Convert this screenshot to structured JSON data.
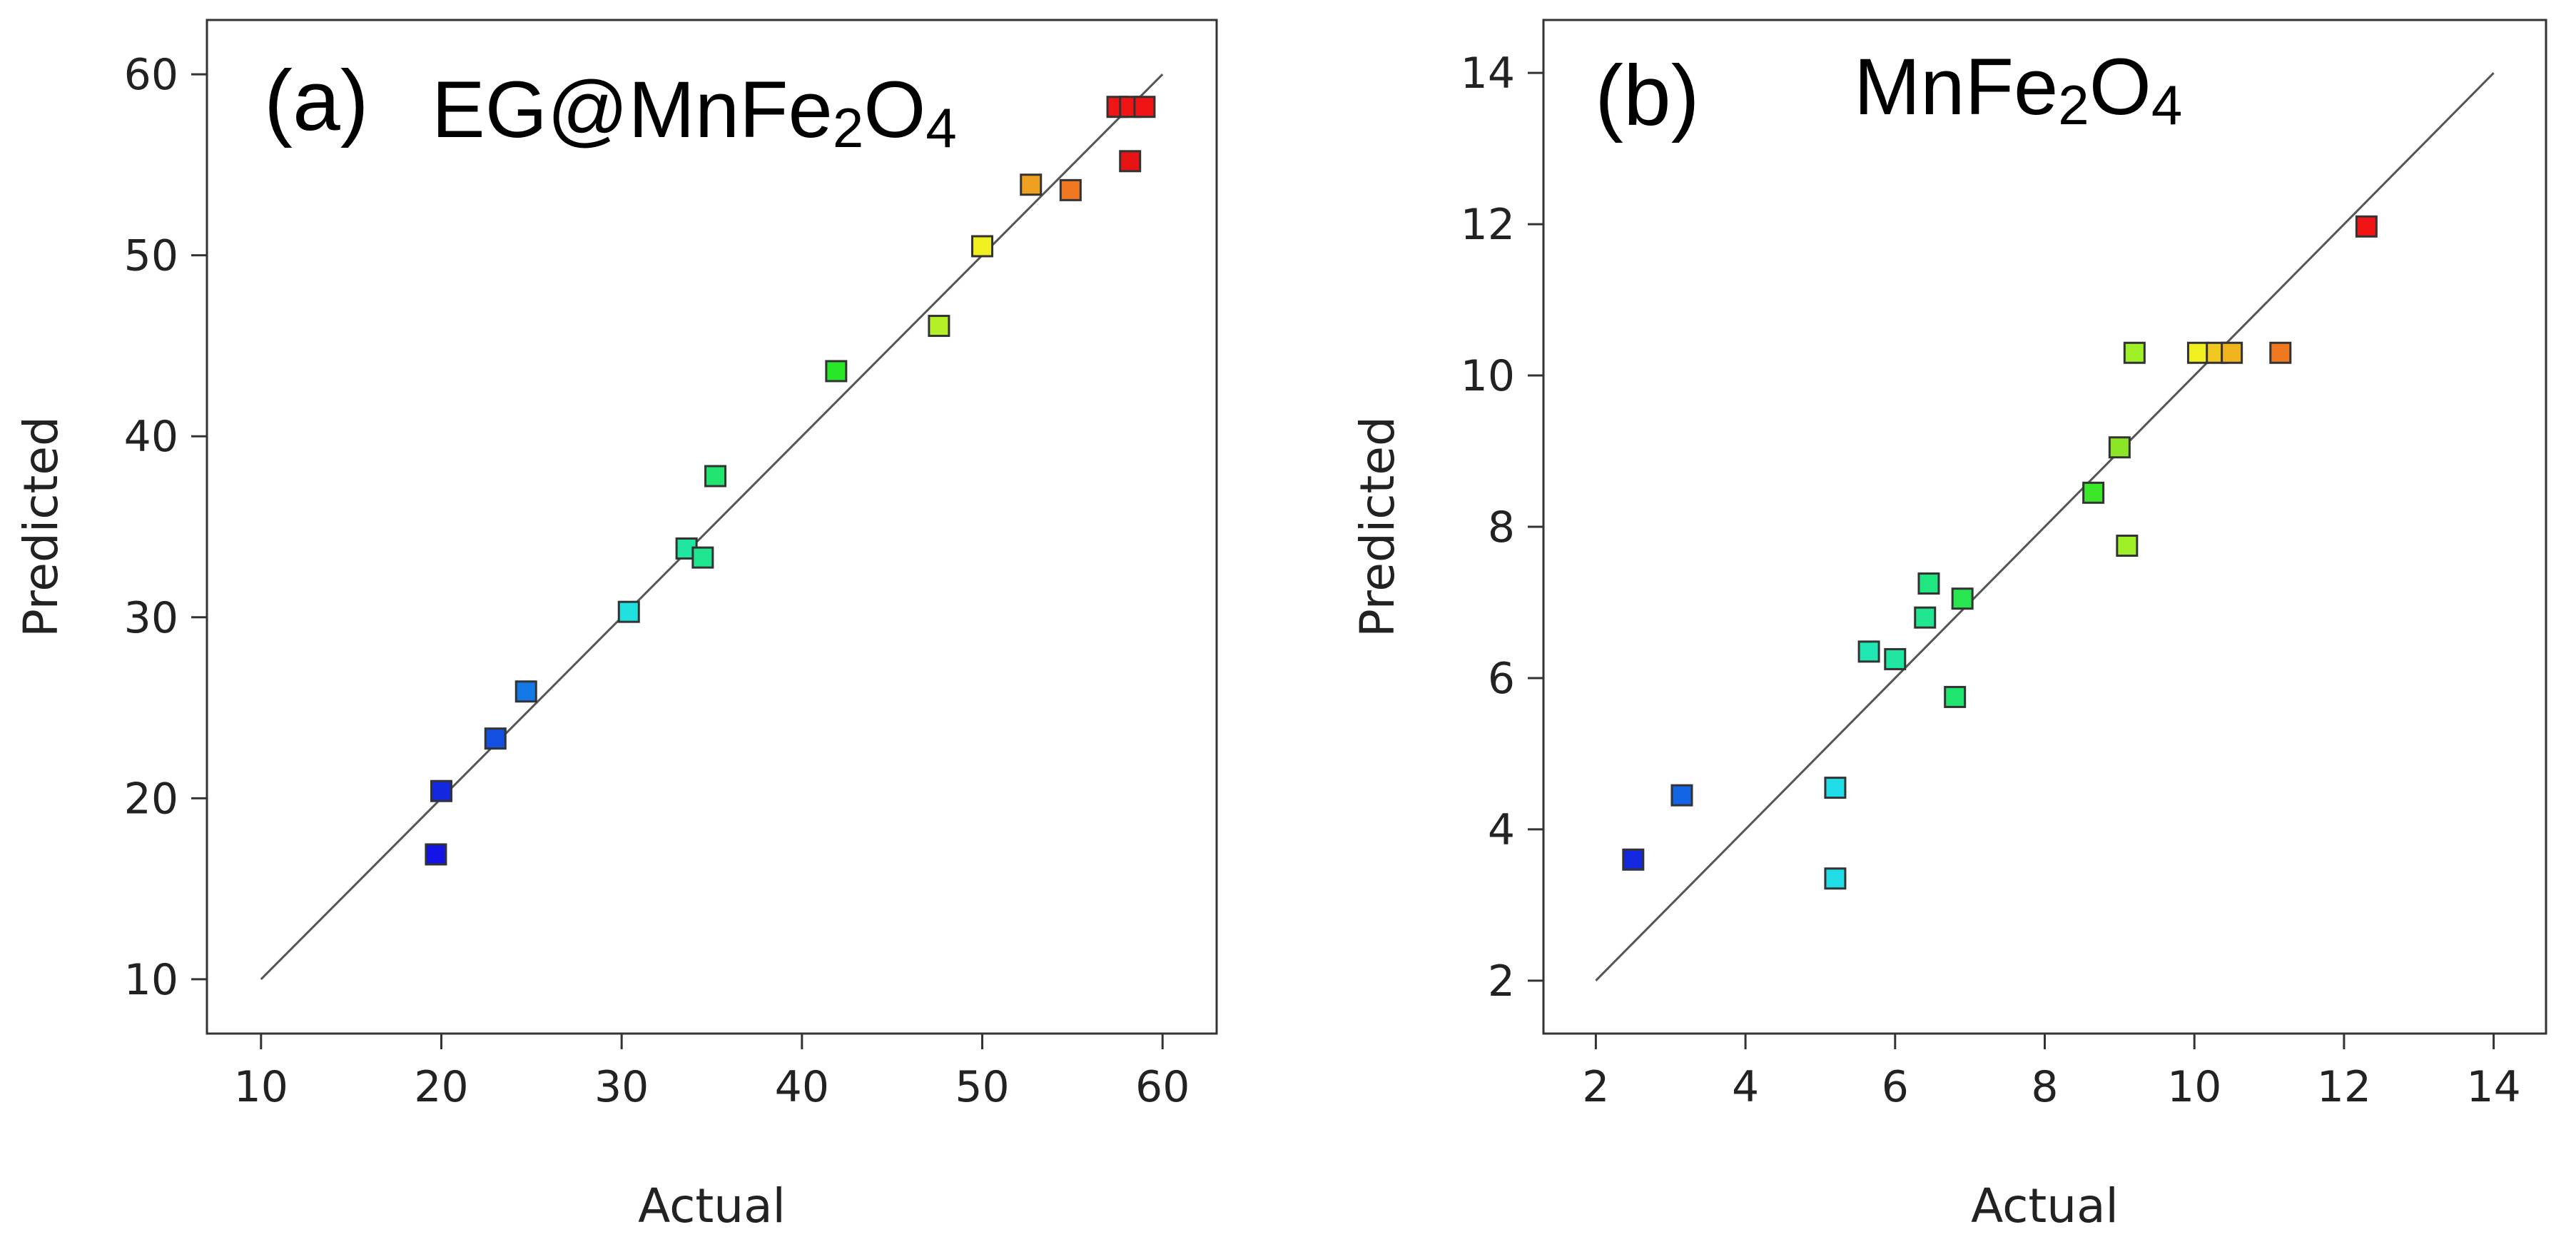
{
  "chart_data": [
    {
      "type": "scatter",
      "panel_label": "(a)",
      "title_parts": [
        {
          "text": "EG@MnFe",
          "sub": false
        },
        {
          "text": "2",
          "sub": true
        },
        {
          "text": "O",
          "sub": false
        },
        {
          "text": "4",
          "sub": true
        }
      ],
      "xlabel": "Actual",
      "ylabel": "Predicted",
      "xlim": [
        7,
        63
      ],
      "ylim": [
        7,
        63
      ],
      "xticks": [
        10,
        20,
        30,
        40,
        50,
        60
      ],
      "yticks": [
        10,
        20,
        30,
        40,
        50,
        60
      ],
      "reference_line": [
        [
          10,
          10
        ],
        [
          60,
          60
        ]
      ],
      "grid": false,
      "points": [
        {
          "x": 19.7,
          "y": 16.9,
          "color": "#1414e6"
        },
        {
          "x": 20.0,
          "y": 20.4,
          "color": "#1428e0"
        },
        {
          "x": 23.0,
          "y": 23.3,
          "color": "#1450e0"
        },
        {
          "x": 24.7,
          "y": 25.9,
          "color": "#1478e6"
        },
        {
          "x": 30.4,
          "y": 30.3,
          "color": "#20e0e0"
        },
        {
          "x": 33.6,
          "y": 33.8,
          "color": "#20e6a0"
        },
        {
          "x": 34.5,
          "y": 33.3,
          "color": "#20e690"
        },
        {
          "x": 35.2,
          "y": 37.8,
          "color": "#20e670"
        },
        {
          "x": 41.9,
          "y": 43.6,
          "color": "#28e628"
        },
        {
          "x": 47.6,
          "y": 46.1,
          "color": "#b4f028"
        },
        {
          "x": 50.0,
          "y": 50.5,
          "color": "#f0f020"
        },
        {
          "x": 52.7,
          "y": 53.9,
          "color": "#f0a020"
        },
        {
          "x": 54.9,
          "y": 53.6,
          "color": "#f07820"
        },
        {
          "x": 57.5,
          "y": 58.2,
          "color": "#f01414"
        },
        {
          "x": 58.2,
          "y": 58.2,
          "color": "#f01414"
        },
        {
          "x": 58.2,
          "y": 55.2,
          "color": "#e61414"
        },
        {
          "x": 59.0,
          "y": 58.2,
          "color": "#f01414"
        }
      ]
    },
    {
      "type": "scatter",
      "panel_label": "(b)",
      "title_parts": [
        {
          "text": "MnFe",
          "sub": false
        },
        {
          "text": "2",
          "sub": true
        },
        {
          "text": "O",
          "sub": false
        },
        {
          "text": "4",
          "sub": true
        }
      ],
      "xlabel": "Actual",
      "ylabel": "Predicted",
      "xlim": [
        1.3,
        14.7
      ],
      "ylim": [
        1.3,
        14.7
      ],
      "xticks": [
        2,
        4,
        6,
        8,
        10,
        12,
        14
      ],
      "yticks": [
        2,
        4,
        6,
        8,
        10,
        12,
        14
      ],
      "reference_line": [
        [
          2,
          2
        ],
        [
          14,
          14
        ]
      ],
      "grid": false,
      "points": [
        {
          "x": 2.5,
          "y": 3.6,
          "color": "#1428e0"
        },
        {
          "x": 3.15,
          "y": 4.45,
          "color": "#1464e6"
        },
        {
          "x": 5.2,
          "y": 4.55,
          "color": "#20dce6"
        },
        {
          "x": 5.2,
          "y": 3.35,
          "color": "#20dce6"
        },
        {
          "x": 5.65,
          "y": 6.35,
          "color": "#20e6b4"
        },
        {
          "x": 6.0,
          "y": 6.25,
          "color": "#20e6a0"
        },
        {
          "x": 6.4,
          "y": 6.8,
          "color": "#20e690"
        },
        {
          "x": 6.45,
          "y": 7.25,
          "color": "#20e680"
        },
        {
          "x": 6.8,
          "y": 5.75,
          "color": "#20e670"
        },
        {
          "x": 6.9,
          "y": 7.05,
          "color": "#28e650"
        },
        {
          "x": 8.65,
          "y": 8.45,
          "color": "#3ce628"
        },
        {
          "x": 9.0,
          "y": 9.05,
          "color": "#8ce628"
        },
        {
          "x": 9.1,
          "y": 7.75,
          "color": "#a0f028"
        },
        {
          "x": 9.2,
          "y": 10.3,
          "color": "#a0f028"
        },
        {
          "x": 10.05,
          "y": 10.3,
          "color": "#f0f020"
        },
        {
          "x": 10.3,
          "y": 10.3,
          "color": "#f0c820"
        },
        {
          "x": 10.5,
          "y": 10.3,
          "color": "#f0b420"
        },
        {
          "x": 11.15,
          "y": 10.3,
          "color": "#f07820"
        },
        {
          "x": 12.3,
          "y": 11.97,
          "color": "#f01414"
        }
      ]
    }
  ]
}
